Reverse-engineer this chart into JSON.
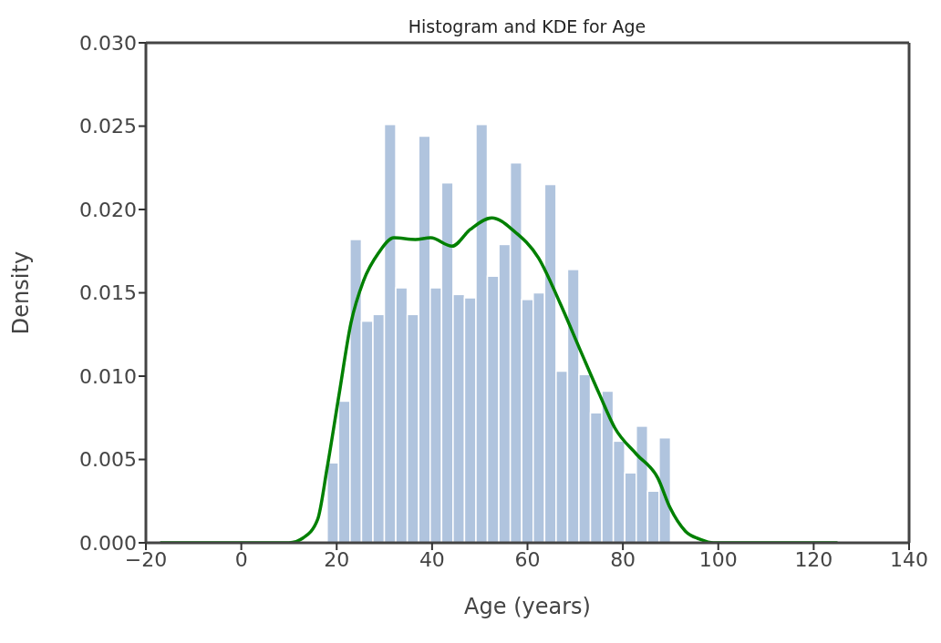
{
  "chart_data": {
    "type": "histogram",
    "title": "Histogram and KDE for Age",
    "xlabel": "Age (years)",
    "ylabel": "Density",
    "series": [
      {
        "color": "#b0c4de",
        "bins": [
          18,
          20.4,
          22.8,
          25.2,
          27.6,
          30,
          32.4,
          34.8,
          37.2,
          39.6,
          42,
          44.4,
          46.8,
          49.2,
          51.6,
          54,
          56.4,
          58.8,
          61.2,
          63.6,
          66,
          68.4,
          70.8,
          73.2,
          75.6,
          78,
          80.4,
          82.8,
          85.2,
          87.6,
          90
        ],
        "values": [
          0.0048,
          0.0085,
          0.0182,
          0.0133,
          0.0137,
          0.0251,
          0.0153,
          0.0137,
          0.0244,
          0.0153,
          0.0216,
          0.0149,
          0.0147,
          0.0251,
          0.016,
          0.0179,
          0.0228,
          0.0146,
          0.015,
          0.0215,
          0.0103,
          0.0164,
          0.0101,
          0.0078,
          0.0091,
          0.0061,
          0.0042,
          0.007,
          0.0031,
          0.0063
        ]
      },
      {
        "type": "line",
        "color": "#008000",
        "x": [
          -17,
          5,
          10,
          13,
          16,
          18,
          20.5,
          23,
          25.6,
          28.8,
          32,
          36.5,
          39.7,
          44.2,
          48,
          52.5,
          57.2,
          62.3,
          66.8,
          71.3,
          75.1,
          78.3,
          82.9,
          87.3,
          89.9,
          93.1,
          96.3,
          99,
          110,
          125
        ],
        "values": [
          0,
          0,
          0,
          0.0003,
          0.0014,
          0.0045,
          0.0089,
          0.0132,
          0.0157,
          0.0174,
          0.0183,
          0.0182,
          0.0183,
          0.0178,
          0.0188,
          0.0195,
          0.0187,
          0.0171,
          0.0144,
          0.0114,
          0.0089,
          0.0069,
          0.0053,
          0.0039,
          0.0021,
          0.0007,
          0.0002,
          0,
          0,
          0
        ]
      }
    ],
    "xlim": [
      -20,
      140
    ],
    "xticks": [
      {
        "value": -20,
        "label": "−20"
      },
      0,
      20,
      40,
      60,
      80,
      100,
      120,
      140
    ],
    "ylim": [
      0,
      0.03
    ],
    "yticks": [
      {
        "value": 0,
        "label": "0.000"
      },
      0.005,
      {
        "value": 0.01,
        "label": "0.010"
      },
      0.015,
      {
        "value": 0.02,
        "label": "0.020"
      },
      0.025,
      {
        "value": 0.03,
        "label": "0.030"
      }
    ],
    "grid": false,
    "legend": false
  }
}
